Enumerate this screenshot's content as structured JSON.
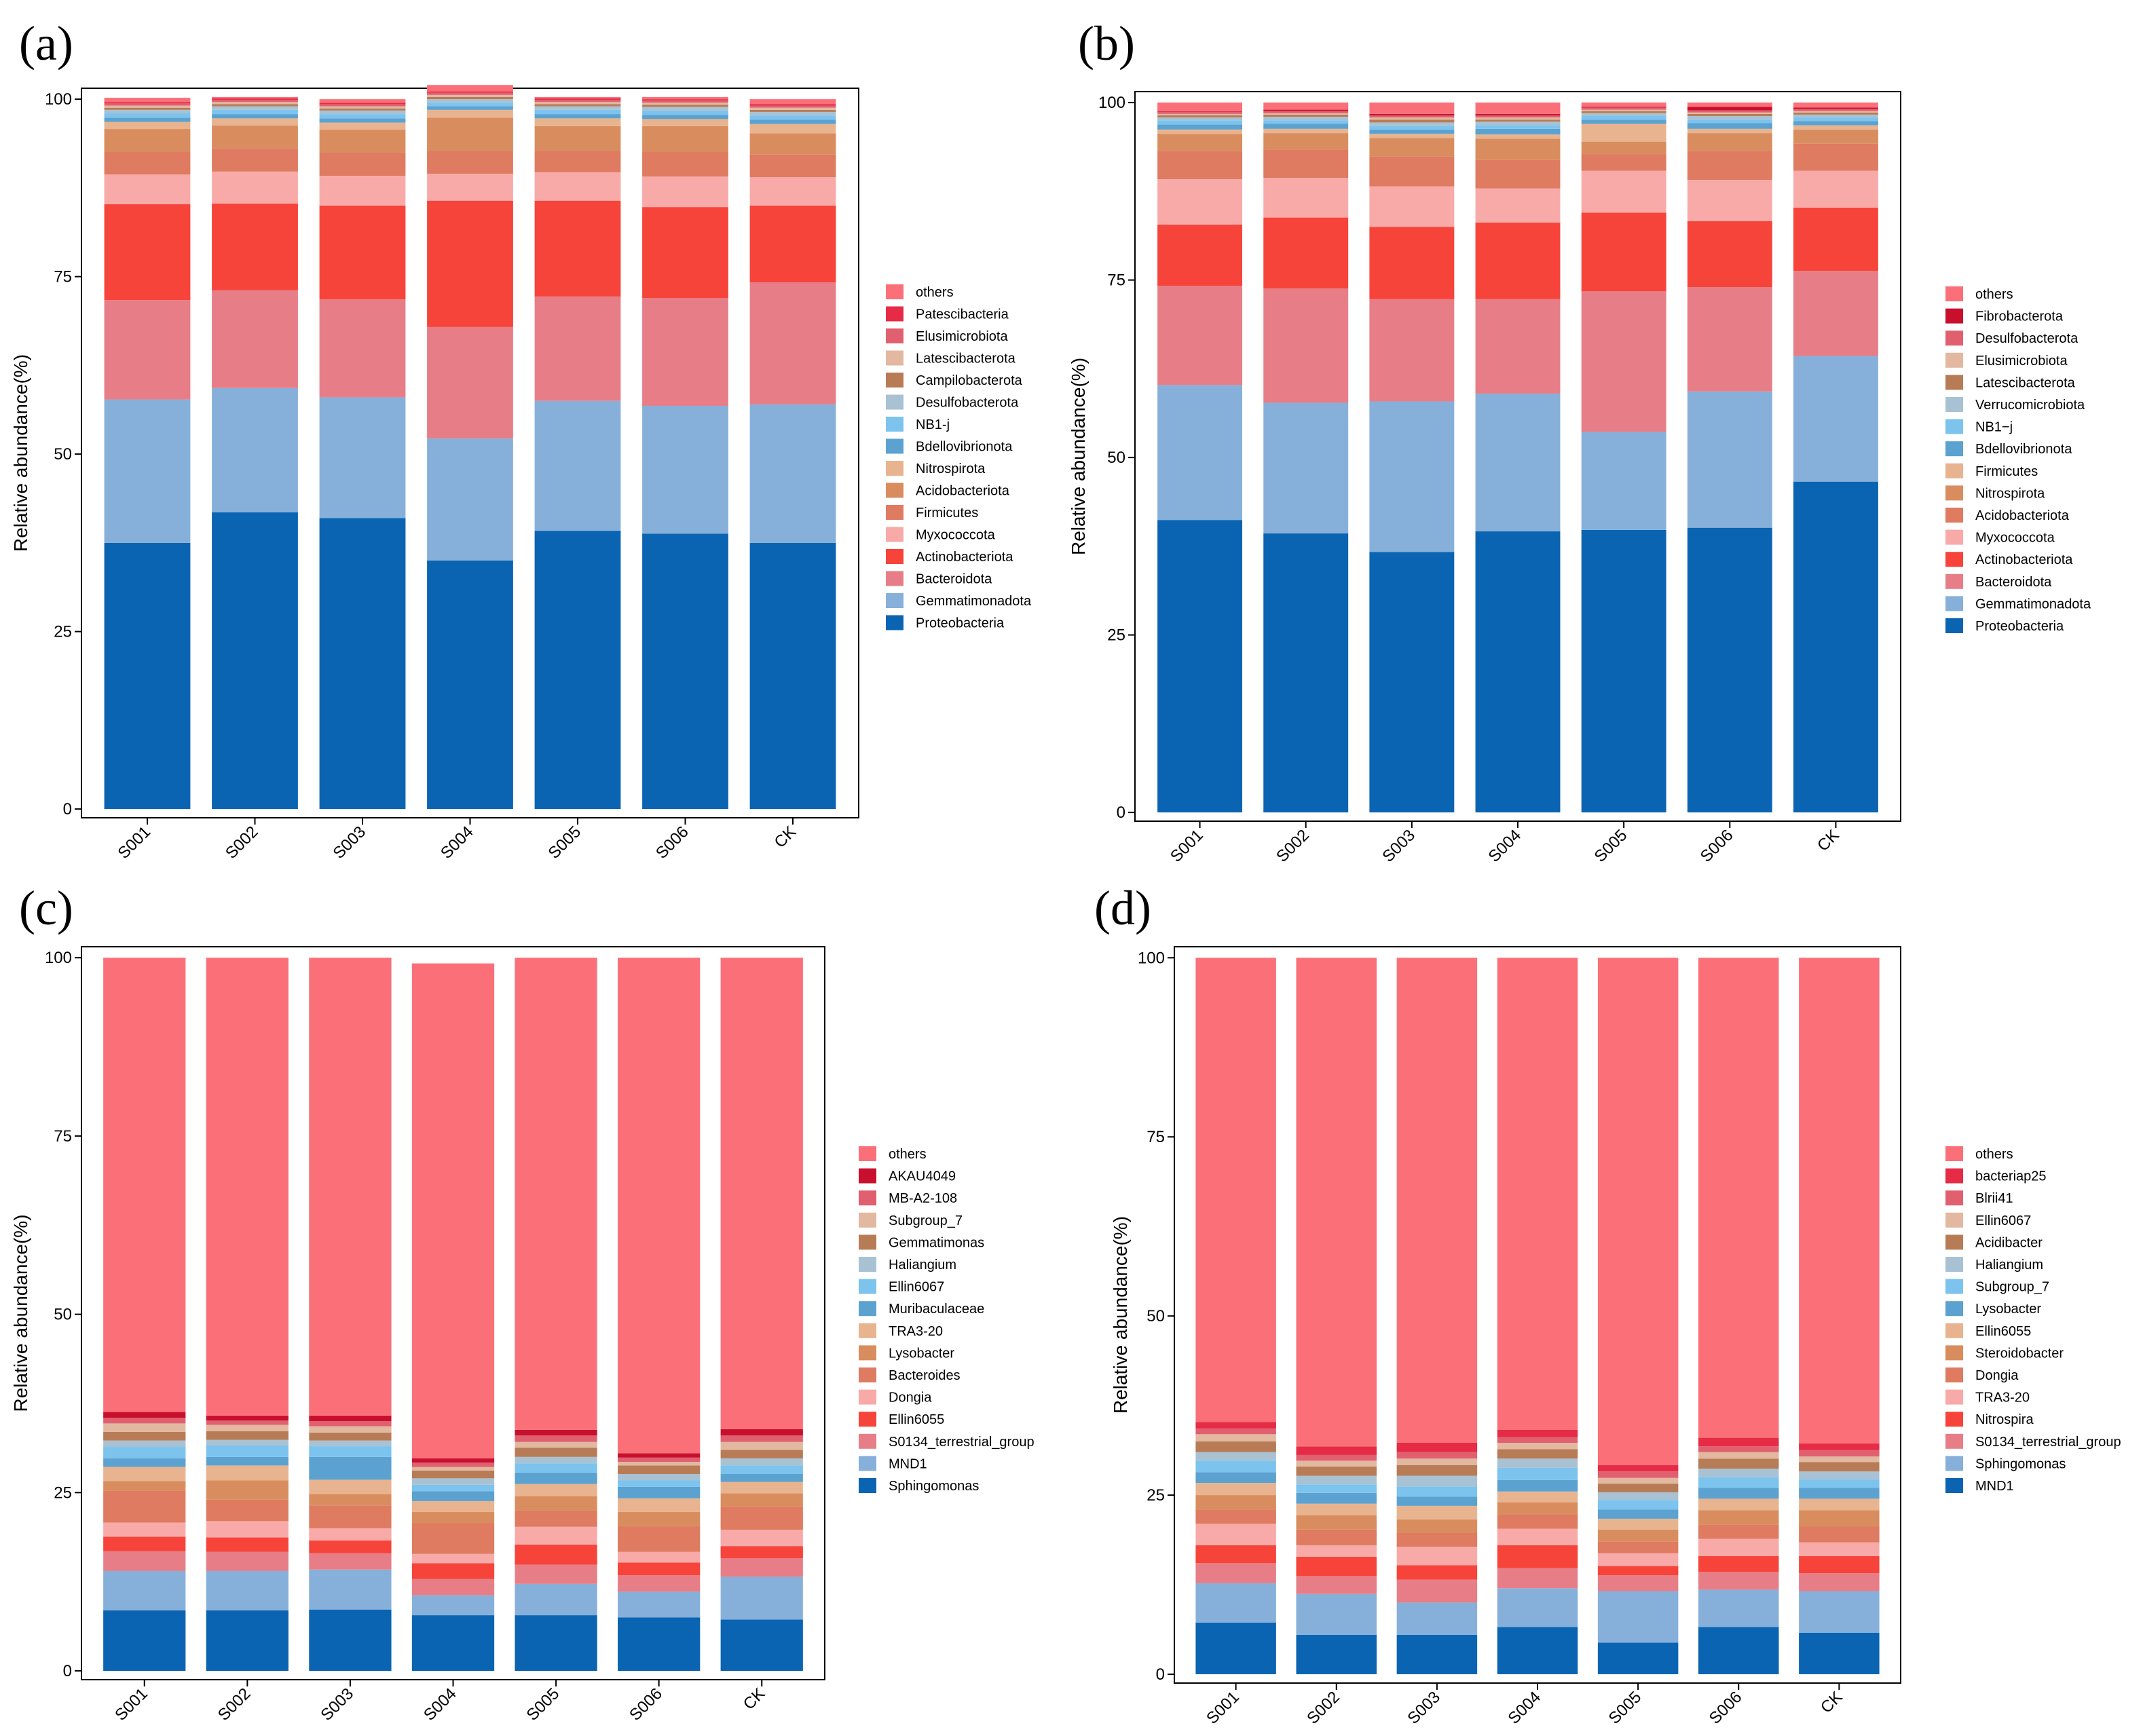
{
  "chart_data": [
    {
      "type": "bar",
      "panel": "(a)",
      "ylabel": "Relative abundance(%)",
      "ylim": [
        0,
        100
      ],
      "yticks": [
        "0",
        "25",
        "50",
        "75",
        "100"
      ],
      "categories": [
        "S001",
        "S002",
        "S003",
        "S004",
        "S005",
        "S006",
        "CK"
      ],
      "series": [
        {
          "name": "Proteobacteria",
          "color": "#0a64b2",
          "values": [
            37.5,
            41.8,
            41,
            35,
            39.2,
            38.8,
            37.5
          ]
        },
        {
          "name": "Gemmatimonadota",
          "color": "#86b0da",
          "values": [
            20.2,
            17.5,
            17,
            17.2,
            18.3,
            18,
            19.5
          ]
        },
        {
          "name": "Bacteroidota",
          "color": "#e77e87",
          "values": [
            14,
            13.8,
            13.8,
            15.7,
            14.7,
            15.2,
            17.2
          ]
        },
        {
          "name": "Actinobacteriota",
          "color": "#f6443a",
          "values": [
            13.5,
            12.2,
            13.2,
            17.8,
            13.5,
            12.8,
            10.8
          ]
        },
        {
          "name": "Myxococcota",
          "color": "#f8aaa9",
          "values": [
            4.2,
            4.5,
            4.2,
            3.8,
            4,
            4.3,
            4
          ]
        },
        {
          "name": "Firmicutes",
          "color": "#de7b60",
          "values": [
            3.2,
            3.3,
            3.3,
            3.2,
            3,
            3.5,
            3.2
          ]
        },
        {
          "name": "Acidobacteriota",
          "color": "#d98d5e",
          "values": [
            3.2,
            3.2,
            3.2,
            4.7,
            3.5,
            3.6,
            3
          ]
        },
        {
          "name": "Nitrospirota",
          "color": "#e8b48f",
          "values": [
            1,
            1,
            1,
            1.1,
            1.1,
            1,
            1.3
          ]
        },
        {
          "name": "Bdellovibrionota",
          "color": "#5ca2d0",
          "values": [
            0.6,
            0.6,
            0.6,
            0.5,
            0.6,
            0.6,
            0.6
          ]
        },
        {
          "name": "NB1-j",
          "color": "#7cc3ee",
          "values": [
            0.6,
            0.6,
            0.6,
            0.5,
            0.6,
            0.6,
            0.6
          ]
        },
        {
          "name": "Desulfobacterota",
          "color": "#a8c2d3",
          "values": [
            0.5,
            0.5,
            0.5,
            0.5,
            0.5,
            0.5,
            0.5
          ]
        },
        {
          "name": "Campilobacterota",
          "color": "#b77c56",
          "values": [
            0.3,
            0.3,
            0.3,
            0.3,
            0.3,
            0.3,
            0.3
          ]
        },
        {
          "name": "Latescibacterota",
          "color": "#e2b8a0",
          "values": [
            0.3,
            0.3,
            0.3,
            0.3,
            0.3,
            0.3,
            0.3
          ]
        },
        {
          "name": "Elusimicrobiota",
          "color": "#e06070",
          "values": [
            0.3,
            0.3,
            0.3,
            0.3,
            0.3,
            0.3,
            0.3
          ]
        },
        {
          "name": "Patescibacteria",
          "color": "#e52b45",
          "values": [
            0.2,
            0.2,
            0.2,
            0.2,
            0.2,
            0.2,
            0.2
          ]
        },
        {
          "name": "others",
          "color": "#fb7078",
          "values": [
            0.6,
            0.2,
            0.5,
            0.9,
            0.2,
            0.3,
            0.7
          ]
        }
      ]
    },
    {
      "type": "bar",
      "panel": "(b)",
      "ylabel": "Relative abundance(%)",
      "ylim": [
        0,
        100
      ],
      "yticks": [
        "0",
        "25",
        "50",
        "75",
        "100"
      ],
      "categories": [
        "S001",
        "S002",
        "S003",
        "S004",
        "S005",
        "S006",
        "CK"
      ],
      "series": [
        {
          "name": "Proteobacteria",
          "color": "#0a64b2",
          "values": [
            41.2,
            39.3,
            36.7,
            39.6,
            39.8,
            40.1,
            46.6
          ]
        },
        {
          "name": "Gemmatimonadota",
          "color": "#86b0da",
          "values": [
            19,
            18.4,
            21.2,
            19.4,
            13.8,
            19.2,
            17.7
          ]
        },
        {
          "name": "Bacteroidota",
          "color": "#e77e87",
          "values": [
            14,
            16.1,
            14.4,
            13.3,
            19.8,
            14.7,
            12
          ]
        },
        {
          "name": "Actinobacteriota",
          "color": "#f6443a",
          "values": [
            8.6,
            10,
            10.2,
            10.8,
            11.1,
            9.3,
            8.9
          ]
        },
        {
          "name": "Myxococcota",
          "color": "#f8aaa9",
          "values": [
            6.4,
            5.6,
            5.7,
            4.8,
            5.9,
            5.8,
            5.2
          ]
        },
        {
          "name": "Acidobacteriota",
          "color": "#de7b60",
          "values": [
            4,
            4,
            4.2,
            4,
            2.3,
            4.1,
            3.8
          ]
        },
        {
          "name": "Nitrospirota",
          "color": "#d98d5e",
          "values": [
            2.4,
            2.3,
            2.6,
            3,
            1.8,
            2.5,
            2
          ]
        },
        {
          "name": "Firmicutes",
          "color": "#e8b48f",
          "values": [
            0.6,
            0.6,
            0.6,
            0.6,
            2.5,
            0.6,
            0.6
          ]
        },
        {
          "name": "Bdellovibrionota",
          "color": "#5ca2d0",
          "values": [
            0.7,
            0.7,
            0.6,
            0.8,
            0.6,
            0.8,
            0.6
          ]
        },
        {
          "name": "NB1−j",
          "color": "#7cc3ee",
          "values": [
            0.6,
            0.5,
            0.5,
            0.5,
            0.5,
            0.5,
            0.5
          ]
        },
        {
          "name": "Verrucomicrobiota",
          "color": "#a8c2d3",
          "values": [
            0.4,
            0.5,
            0.5,
            0.5,
            0.4,
            0.5,
            0.4
          ]
        },
        {
          "name": "Latescibacterota",
          "color": "#b77c56",
          "values": [
            0.3,
            0.3,
            0.4,
            0.3,
            0.3,
            0.3,
            0.3
          ]
        },
        {
          "name": "Elusimicrobiota",
          "color": "#e2b8a0",
          "values": [
            0.2,
            0.2,
            0.3,
            0.3,
            0.2,
            0.2,
            0.2
          ]
        },
        {
          "name": "Desulfobacterota",
          "color": "#e06070",
          "values": [
            0.3,
            0.3,
            0.3,
            0.3,
            0.3,
            0.3,
            0.3
          ]
        },
        {
          "name": "Fibrobacterota",
          "color": "#c8102e",
          "values": [
            0.1,
            0.2,
            0.2,
            0.2,
            0.1,
            0.5,
            0.2
          ]
        },
        {
          "name": "others",
          "color": "#fb7078",
          "values": [
            1.2,
            1,
            1.6,
            1.6,
            0.6,
            0.6,
            0.7
          ]
        }
      ]
    },
    {
      "type": "bar",
      "panel": "(c)",
      "ylabel": "Relative abundance(%)",
      "ylim": [
        0,
        100
      ],
      "yticks": [
        "0",
        "25",
        "50",
        "75",
        "100"
      ],
      "categories": [
        "S001",
        "S002",
        "S003",
        "S004",
        "S005",
        "S006",
        "CK"
      ],
      "series": [
        {
          "name": "Sphingomonas",
          "color": "#0a64b2",
          "values": [
            8.5,
            8.5,
            8.6,
            7.8,
            7.8,
            7.5,
            7.2
          ]
        },
        {
          "name": "MND1",
          "color": "#86b0da",
          "values": [
            5.5,
            5.5,
            5.6,
            2.8,
            4.4,
            3.6,
            6
          ]
        },
        {
          "name": "S0134_terrestrial_group",
          "color": "#e77e87",
          "values": [
            2.8,
            2.7,
            2.3,
            2.3,
            2.7,
            2.3,
            2.6
          ]
        },
        {
          "name": "Ellin6055",
          "color": "#f6443a",
          "values": [
            2,
            2,
            1.8,
            2.2,
            2.8,
            1.8,
            1.7
          ]
        },
        {
          "name": "Dongia",
          "color": "#f8aaa9",
          "values": [
            2,
            2.3,
            1.7,
            1.3,
            2.5,
            1.5,
            2.3
          ]
        },
        {
          "name": "Bacteroides",
          "color": "#de7b60",
          "values": [
            4.5,
            3,
            3.2,
            4.3,
            2.3,
            3.6,
            3.3
          ]
        },
        {
          "name": "Lysobacter",
          "color": "#d98d5e",
          "values": [
            1.3,
            2.7,
            1.6,
            1.6,
            2,
            2,
            1.8
          ]
        },
        {
          "name": "TRA3-20",
          "color": "#e8b48f",
          "values": [
            2,
            2.1,
            2,
            1.5,
            1.7,
            1.9,
            1.6
          ]
        },
        {
          "name": "Muribaculaceae",
          "color": "#5ca2d0",
          "values": [
            1.2,
            1.2,
            3.2,
            1.4,
            1.6,
            1.6,
            1.1
          ]
        },
        {
          "name": "Ellin6067",
          "color": "#7cc3ee",
          "values": [
            1.6,
            1.6,
            1.5,
            0.9,
            1.3,
            0.9,
            1.2
          ]
        },
        {
          "name": "Haliangium",
          "color": "#a8c2d3",
          "values": [
            0.9,
            0.8,
            0.8,
            0.9,
            0.9,
            0.9,
            1
          ]
        },
        {
          "name": "Gemmatimonas",
          "color": "#b77c56",
          "values": [
            1.2,
            1.2,
            1.1,
            1.1,
            1.3,
            1.2,
            1.2
          ]
        },
        {
          "name": "Subgroup_7",
          "color": "#e2b8a0",
          "values": [
            1.2,
            0.9,
            0.9,
            0.5,
            0.8,
            0.5,
            1.1
          ]
        },
        {
          "name": "MB-A2-108",
          "color": "#e06070",
          "values": [
            0.8,
            0.6,
            0.7,
            0.6,
            0.9,
            0.6,
            0.9
          ]
        },
        {
          "name": "AKAU4049",
          "color": "#c8102e",
          "values": [
            0.8,
            0.7,
            0.8,
            0.6,
            0.8,
            0.6,
            0.9
          ]
        },
        {
          "name": "others",
          "color": "#fb7078",
          "values": [
            63.7,
            64.2,
            64.2,
            69.4,
            66.2,
            69.5,
            66.1
          ]
        }
      ]
    },
    {
      "type": "bar",
      "panel": "(d)",
      "ylabel": "Relative abundance(%)",
      "ylim": [
        0,
        100
      ],
      "yticks": [
        "0",
        "25",
        "50",
        "75",
        "100"
      ],
      "categories": [
        "S001",
        "S002",
        "S003",
        "S004",
        "S005",
        "S006",
        "CK"
      ],
      "series": [
        {
          "name": "MND1",
          "color": "#0a64b2",
          "values": [
            7.2,
            5.5,
            5.5,
            6.6,
            4.4,
            6.6,
            5.8
          ]
        },
        {
          "name": "Sphingomonas",
          "color": "#86b0da",
          "values": [
            5.5,
            5.7,
            4.5,
            5.4,
            7.2,
            5.2,
            5.8
          ]
        },
        {
          "name": "S0134_terrestrial_group",
          "color": "#e77e87",
          "values": [
            2.8,
            2.5,
            3.2,
            2.8,
            2.2,
            2.5,
            2.5
          ]
        },
        {
          "name": "Nitrospira",
          "color": "#f6443a",
          "values": [
            2.5,
            2.7,
            2,
            3.2,
            1.3,
            2.2,
            2.4
          ]
        },
        {
          "name": "TRA3-20",
          "color": "#f8aaa9",
          "values": [
            3,
            1.6,
            2.6,
            2.3,
            1.8,
            2.4,
            1.9
          ]
        },
        {
          "name": "Dongia",
          "color": "#de7b60",
          "values": [
            2,
            2.2,
            1.9,
            2,
            1.6,
            2,
            2.2
          ]
        },
        {
          "name": "Steroidobacter",
          "color": "#d98d5e",
          "values": [
            2,
            2,
            1.9,
            1.7,
            1.7,
            2,
            2.3
          ]
        },
        {
          "name": "Ellin6055",
          "color": "#e8b48f",
          "values": [
            1.7,
            1.6,
            1.9,
            1.5,
            1.5,
            1.6,
            1.6
          ]
        },
        {
          "name": "Lysobacter",
          "color": "#5ca2d0",
          "values": [
            1.5,
            1.5,
            1.3,
            1.6,
            1.3,
            1.5,
            1.5
          ]
        },
        {
          "name": "Subgroup_7",
          "color": "#7cc3ee",
          "values": [
            1.6,
            1.2,
            1.4,
            1.7,
            1.3,
            1.5,
            1.2
          ]
        },
        {
          "name": "Haliangium",
          "color": "#a8c2d3",
          "values": [
            1.2,
            1.2,
            1.5,
            1.3,
            1.1,
            1.2,
            1.1
          ]
        },
        {
          "name": "Acidibacter",
          "color": "#b77c56",
          "values": [
            1.5,
            1.3,
            1.5,
            1.3,
            1.2,
            1.4,
            1.3
          ]
        },
        {
          "name": "Ellin6067",
          "color": "#e2b8a0",
          "values": [
            1,
            0.8,
            0.9,
            0.9,
            0.8,
            0.9,
            0.8
          ]
        },
        {
          "name": "Blrii41",
          "color": "#e06070",
          "values": [
            0.8,
            0.8,
            0.9,
            0.8,
            0.9,
            0.8,
            0.9
          ]
        },
        {
          "name": "bacteriap25",
          "color": "#e52b45",
          "values": [
            0.9,
            1.2,
            1.3,
            1,
            0.9,
            1.2,
            0.9
          ]
        },
        {
          "name": "others",
          "color": "#fb7078",
          "values": [
            64.8,
            68.2,
            67.7,
            65.9,
            70.8,
            67,
            67.8
          ]
        }
      ]
    }
  ]
}
